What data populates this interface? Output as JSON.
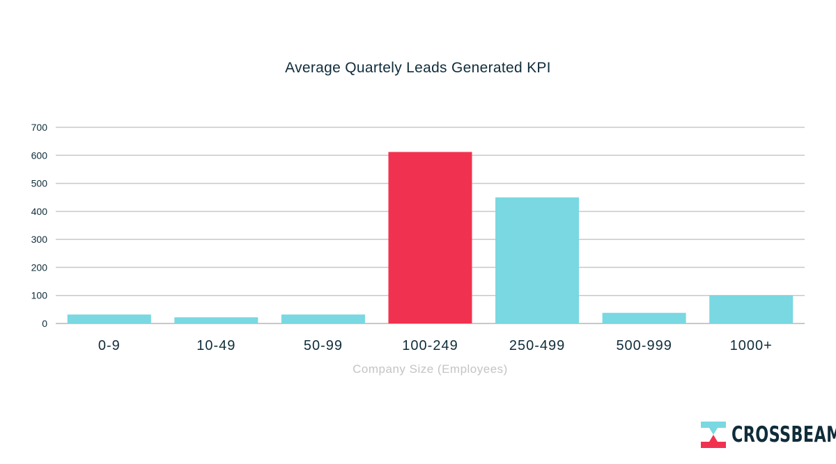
{
  "chart_data": {
    "type": "bar",
    "title": "Average Quartely Leads Generated KPI",
    "xlabel": "Company Size (Employees)",
    "ylabel": "",
    "categories": [
      "0-9",
      "10-49",
      "50-99",
      "100-249",
      "250-499",
      "500-999",
      "1000+"
    ],
    "values": [
      32,
      22,
      32,
      612,
      450,
      38,
      100
    ],
    "ylim": [
      0,
      700
    ],
    "yticks": [
      0,
      100,
      200,
      300,
      400,
      500,
      600,
      700
    ],
    "yticks_labels": [
      "0",
      "100",
      "200",
      "300",
      "400",
      "500",
      "600",
      "700"
    ],
    "grid": true,
    "colors": {
      "default_bar": "#79d8e1",
      "highlight_bar": "#f03250",
      "highlight_category": "100-249",
      "gridline": "#c8c8c8",
      "text": "#0f2c3a"
    }
  },
  "brand": {
    "name": "CROSSBEAM",
    "colors": {
      "teal": "#79d8e1",
      "red": "#f03250",
      "navy": "#0f2c3a"
    }
  }
}
